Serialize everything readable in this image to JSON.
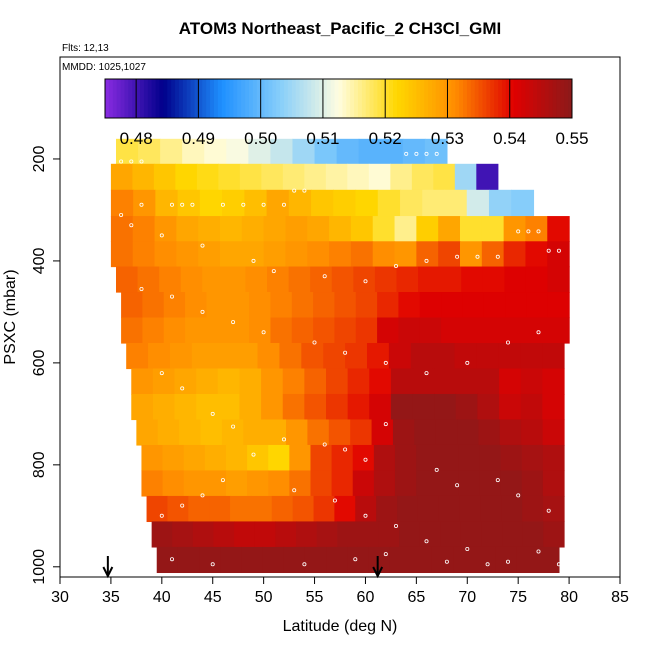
{
  "chart_data": {
    "type": "heatmap",
    "title": "ATOM3 Northeast_Pacific_2 CH3Cl_GMI",
    "flights_label": "Flts: 12,13",
    "mmdd_label": "MMDD: 1025,1027",
    "xlabel": "Latitude (deg N)",
    "ylabel": "PSXC (mbar)",
    "xlim": [
      30,
      85
    ],
    "ylim": [
      1020,
      0
    ],
    "x_ticks": [
      30,
      35,
      40,
      45,
      50,
      55,
      60,
      65,
      70,
      75,
      80,
      85
    ],
    "y_ticks": [
      200,
      400,
      600,
      800,
      1000
    ],
    "colorbar": {
      "min": 0.475,
      "max": 0.55,
      "ticks": [
        0.48,
        0.49,
        0.5,
        0.51,
        0.52,
        0.53,
        0.54,
        0.55
      ],
      "tick_labels": [
        "0.48",
        "0.49",
        "0.50",
        "0.51",
        "0.52",
        "0.53",
        "0.54",
        "0.55"
      ],
      "palette": [
        "#8b1a1a",
        "#e00000",
        "#ff8c00",
        "#ffd700",
        "#fffde0",
        "#87cefa",
        "#1e90ff",
        "#00008b",
        "#8a2be2"
      ]
    },
    "profile_markers_latitude": [
      34.7,
      61.2
    ],
    "rows": [
      {
        "p": 185,
        "lat_start": 35.5,
        "lat_end": 68.0,
        "values": [
          0.519,
          0.518,
          0.516,
          0.514,
          0.513,
          0.512,
          0.51,
          0.508,
          0.505,
          0.502,
          0.5,
          0.499,
          0.499,
          0.5,
          0.501
        ]
      },
      {
        "p": 234,
        "lat_start": 35.0,
        "lat_end": 73.0,
        "values": [
          0.528,
          0.526,
          0.524,
          0.522,
          0.521,
          0.52,
          0.519,
          0.518,
          0.517,
          0.516,
          0.515,
          0.514,
          0.513,
          0.516,
          0.518,
          0.519,
          0.505,
          0.48
        ]
      },
      {
        "p": 287,
        "lat_start": 35.0,
        "lat_end": 76.5,
        "values": [
          0.532,
          0.53,
          0.526,
          0.524,
          0.522,
          0.523,
          0.525,
          0.528,
          0.526,
          0.524,
          0.523,
          0.522,
          0.52,
          0.518,
          0.517,
          0.517,
          0.509,
          0.504,
          0.503
        ]
      },
      {
        "p": 337,
        "lat_start": 35.0,
        "lat_end": 80.0,
        "values": [
          0.533,
          0.532,
          0.53,
          0.528,
          0.527,
          0.526,
          0.527,
          0.528,
          0.529,
          0.528,
          0.526,
          0.524,
          0.52,
          0.516,
          0.523,
          0.528,
          0.52,
          0.52,
          0.53,
          0.532,
          0.54
        ]
      },
      {
        "p": 386,
        "lat_start": 35.0,
        "lat_end": 80.0,
        "values": [
          0.533,
          0.532,
          0.531,
          0.53,
          0.529,
          0.528,
          0.528,
          0.529,
          0.53,
          0.531,
          0.532,
          0.533,
          0.531,
          0.53,
          0.534,
          0.536,
          0.53,
          0.534,
          0.538,
          0.54,
          0.542
        ]
      },
      {
        "p": 436,
        "lat_start": 35.5,
        "lat_end": 80.0,
        "values": [
          0.534,
          0.533,
          0.532,
          0.531,
          0.53,
          0.53,
          0.531,
          0.532,
          0.533,
          0.534,
          0.535,
          0.536,
          0.537,
          0.538,
          0.539,
          0.539,
          0.54,
          0.54,
          0.541,
          0.541,
          0.542
        ]
      },
      {
        "p": 486,
        "lat_start": 36.0,
        "lat_end": 80.0,
        "values": [
          0.534,
          0.533,
          0.532,
          0.531,
          0.53,
          0.53,
          0.531,
          0.532,
          0.533,
          0.534,
          0.535,
          0.536,
          0.538,
          0.54,
          0.541,
          0.541,
          0.541,
          0.541,
          0.541,
          0.541,
          0.541
        ]
      },
      {
        "p": 536,
        "lat_start": 36.0,
        "lat_end": 80.0,
        "values": [
          0.533,
          0.532,
          0.531,
          0.53,
          0.53,
          0.53,
          0.531,
          0.533,
          0.534,
          0.535,
          0.536,
          0.537,
          0.542,
          0.543,
          0.543,
          0.542,
          0.542,
          0.542,
          0.542,
          0.542,
          0.542
        ]
      },
      {
        "p": 586,
        "lat_start": 36.5,
        "lat_end": 79.5,
        "values": [
          0.532,
          0.531,
          0.53,
          0.529,
          0.529,
          0.529,
          0.531,
          0.533,
          0.535,
          0.536,
          0.537,
          0.539,
          0.543,
          0.545,
          0.545,
          0.544,
          0.544,
          0.544,
          0.544,
          0.544
        ]
      },
      {
        "p": 636,
        "lat_start": 37.0,
        "lat_end": 79.5,
        "values": [
          0.53,
          0.529,
          0.528,
          0.527,
          0.526,
          0.527,
          0.53,
          0.532,
          0.534,
          0.536,
          0.538,
          0.54,
          0.545,
          0.545,
          0.545,
          0.545,
          0.545,
          0.542,
          0.543,
          0.542
        ]
      },
      {
        "p": 686,
        "lat_start": 37.0,
        "lat_end": 79.5,
        "values": [
          0.528,
          0.527,
          0.526,
          0.525,
          0.525,
          0.527,
          0.53,
          0.533,
          0.535,
          0.537,
          0.539,
          0.542,
          0.549,
          0.549,
          0.549,
          0.548,
          0.546,
          0.543,
          0.544,
          0.542
        ]
      },
      {
        "p": 736,
        "lat_start": 37.5,
        "lat_end": 79.5,
        "values": [
          0.528,
          0.527,
          0.526,
          0.525,
          0.526,
          0.527,
          0.527,
          0.53,
          0.533,
          0.535,
          0.537,
          0.542,
          0.548,
          0.549,
          0.549,
          0.549,
          0.548,
          0.546,
          0.545,
          0.543
        ]
      },
      {
        "p": 786,
        "lat_start": 38.0,
        "lat_end": 79.5,
        "values": [
          0.53,
          0.529,
          0.528,
          0.527,
          0.526,
          0.524,
          0.522,
          0.53,
          0.536,
          0.538,
          0.54,
          0.546,
          0.548,
          0.549,
          0.549,
          0.549,
          0.549,
          0.548,
          0.547,
          0.546
        ]
      },
      {
        "p": 836,
        "lat_start": 38.0,
        "lat_end": 79.5,
        "values": [
          0.532,
          0.531,
          0.53,
          0.53,
          0.529,
          0.53,
          0.531,
          0.533,
          0.536,
          0.538,
          0.543,
          0.546,
          0.548,
          0.549,
          0.549,
          0.549,
          0.549,
          0.549,
          0.548,
          0.546
        ]
      },
      {
        "p": 886,
        "lat_start": 38.5,
        "lat_end": 79.5,
        "values": [
          0.536,
          0.535,
          0.534,
          0.534,
          0.533,
          0.533,
          0.534,
          0.535,
          0.537,
          0.54,
          0.545,
          0.548,
          0.549,
          0.549,
          0.549,
          0.549,
          0.549,
          0.549,
          0.548,
          0.547
        ]
      },
      {
        "p": 936,
        "lat_start": 39.0,
        "lat_end": 79.5,
        "values": [
          0.548,
          0.547,
          0.546,
          0.545,
          0.544,
          0.544,
          0.545,
          0.546,
          0.547,
          0.548,
          0.548,
          0.548,
          0.549,
          0.549,
          0.549,
          0.549,
          0.549,
          0.549,
          0.549,
          0.548
        ]
      },
      {
        "p": 986,
        "lat_start": 39.5,
        "lat_end": 79.0,
        "values": [
          0.549,
          0.549,
          0.549,
          0.549,
          0.549,
          0.549,
          0.549,
          0.549,
          0.549,
          0.549,
          0.549,
          0.549,
          0.549,
          0.549,
          0.549,
          0.549,
          0.549,
          0.549,
          0.549
        ]
      }
    ],
    "observation_points": [
      [
        36,
        205
      ],
      [
        37,
        205
      ],
      [
        38,
        205
      ],
      [
        46,
        290
      ],
      [
        48,
        290
      ],
      [
        50,
        290
      ],
      [
        52,
        290
      ],
      [
        53,
        262
      ],
      [
        54,
        262
      ],
      [
        64,
        190
      ],
      [
        65,
        190
      ],
      [
        66,
        190
      ],
      [
        67,
        190
      ],
      [
        38,
        290
      ],
      [
        41,
        290
      ],
      [
        42,
        290
      ],
      [
        43,
        290
      ],
      [
        36,
        310
      ],
      [
        37,
        330
      ],
      [
        40,
        350
      ],
      [
        44,
        370
      ],
      [
        49,
        400
      ],
      [
        51,
        420
      ],
      [
        56,
        430
      ],
      [
        60,
        440
      ],
      [
        63,
        410
      ],
      [
        66,
        400
      ],
      [
        69,
        392
      ],
      [
        71,
        392
      ],
      [
        73,
        392
      ],
      [
        75,
        342
      ],
      [
        76,
        342
      ],
      [
        77,
        342
      ],
      [
        78,
        380
      ],
      [
        79,
        380
      ],
      [
        38,
        455
      ],
      [
        41,
        470
      ],
      [
        44,
        500
      ],
      [
        47,
        520
      ],
      [
        50,
        540
      ],
      [
        55,
        560
      ],
      [
        58,
        580
      ],
      [
        62,
        600
      ],
      [
        66,
        620
      ],
      [
        70,
        600
      ],
      [
        74,
        560
      ],
      [
        77,
        540
      ],
      [
        40,
        620
      ],
      [
        42,
        650
      ],
      [
        45,
        700
      ],
      [
        47,
        725
      ],
      [
        52,
        750
      ],
      [
        56,
        760
      ],
      [
        58,
        770
      ],
      [
        60,
        790
      ],
      [
        62,
        720
      ],
      [
        67,
        810
      ],
      [
        69,
        840
      ],
      [
        73,
        830
      ],
      [
        75,
        860
      ],
      [
        78,
        890
      ],
      [
        40,
        900
      ],
      [
        42,
        880
      ],
      [
        44,
        860
      ],
      [
        46,
        830
      ],
      [
        49,
        780
      ],
      [
        53,
        850
      ],
      [
        57,
        870
      ],
      [
        60,
        900
      ],
      [
        63,
        920
      ],
      [
        66,
        950
      ],
      [
        70,
        965
      ],
      [
        74,
        990
      ],
      [
        77,
        970
      ],
      [
        41,
        985
      ],
      [
        45,
        995
      ],
      [
        54,
        995
      ],
      [
        59,
        985
      ],
      [
        62,
        975
      ],
      [
        68,
        990
      ],
      [
        72,
        995
      ],
      [
        79,
        995
      ]
    ]
  }
}
